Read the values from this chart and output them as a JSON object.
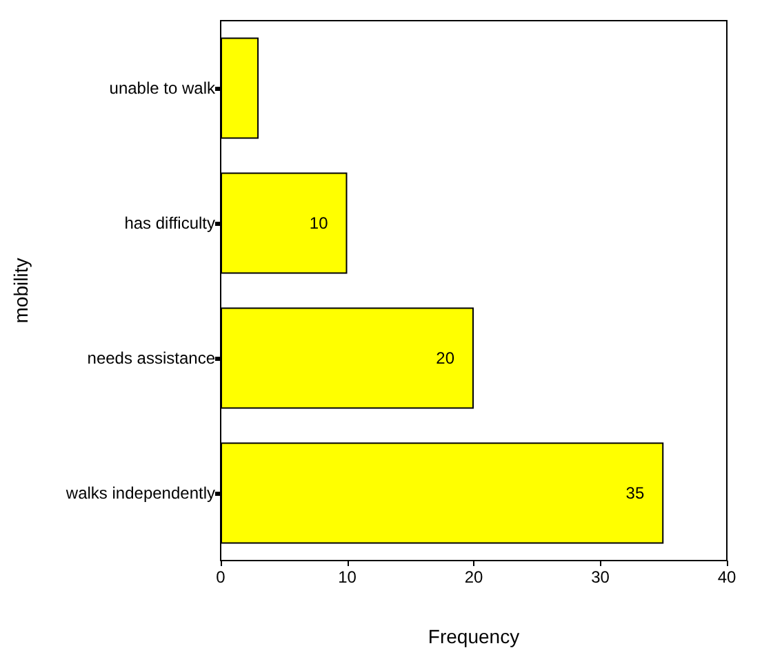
{
  "chart_data": {
    "type": "bar",
    "orientation": "horizontal",
    "xlabel": "Frequency",
    "ylabel": "mobility",
    "categories": [
      "unable to walk",
      "has difficulty",
      "needs assistance",
      "walks independently"
    ],
    "values": [
      3,
      10,
      20,
      35
    ],
    "color": "#ffff00",
    "value_labels": [
      null,
      "10",
      "20",
      "35"
    ],
    "xlim": [
      0,
      40
    ],
    "xticks": [
      0,
      10,
      20,
      30,
      40
    ],
    "grid": false
  }
}
